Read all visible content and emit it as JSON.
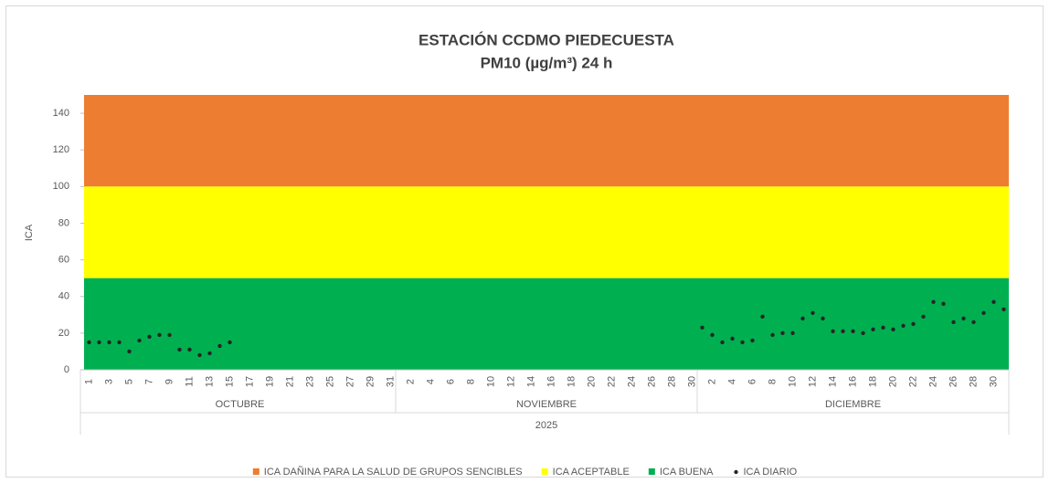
{
  "chart_data": {
    "type": "scatter",
    "title": "ESTACIÓN CCDMO PIEDECUESTA",
    "subtitle": "PM10 (µg/m³) 24 h",
    "y_label": "ICA",
    "ylim": [
      0,
      150
    ],
    "yticks": [
      0,
      20,
      40,
      60,
      80,
      100,
      120,
      140
    ],
    "categories": [
      "1",
      null,
      "3",
      null,
      "5",
      null,
      "7",
      null,
      "9",
      null,
      "11",
      null,
      "13",
      null,
      "15",
      null,
      "17",
      null,
      "19",
      null,
      "21",
      null,
      "23",
      null,
      "25",
      null,
      "27",
      null,
      "29",
      null,
      "31",
      null,
      "2",
      null,
      "4",
      null,
      "6",
      null,
      "8",
      null,
      "10",
      null,
      "12",
      null,
      "14",
      null,
      "16",
      null,
      "18",
      null,
      "20",
      null,
      "22",
      null,
      "24",
      null,
      "26",
      null,
      "28",
      null,
      "30",
      null,
      "2",
      null,
      "4",
      null,
      "6",
      null,
      "8",
      null,
      "10",
      null,
      "12",
      null,
      "14",
      null,
      "16",
      null,
      "18",
      null,
      "20",
      null,
      "22",
      null,
      "24",
      null,
      "26",
      null,
      "28",
      null,
      "30",
      null
    ],
    "groups": [
      {
        "name": "OCTUBRE",
        "span": 31
      },
      {
        "name": "NOVIEMBRE",
        "span": 30
      },
      {
        "name": "DICIEMBRE",
        "span": 31
      }
    ],
    "year": "2025",
    "bands": [
      {
        "name": "ICA DAÑINA PARA LA SALUD DE GRUPOS SENCIBLES",
        "color": "#ed7d31",
        "range": [
          100,
          150
        ]
      },
      {
        "name": "ICA ACEPTABLE",
        "color": "#ffff00",
        "range": [
          50,
          100
        ]
      },
      {
        "name": "ICA BUENA",
        "color": "#00b050",
        "range": [
          0,
          50
        ]
      }
    ],
    "series": [
      {
        "name": "ICA DIARIO",
        "color": "#262626",
        "values": [
          15,
          15,
          15,
          15,
          10,
          16,
          18,
          19,
          19,
          11,
          11,
          8,
          9,
          13,
          15,
          null,
          null,
          null,
          null,
          null,
          null,
          null,
          null,
          null,
          null,
          null,
          null,
          null,
          null,
          null,
          null,
          null,
          null,
          null,
          null,
          null,
          null,
          null,
          null,
          null,
          null,
          null,
          null,
          null,
          null,
          null,
          null,
          null,
          null,
          null,
          null,
          null,
          null,
          null,
          null,
          null,
          null,
          null,
          null,
          null,
          null,
          23,
          19,
          15,
          17,
          15,
          16,
          29,
          19,
          20,
          20,
          28,
          31,
          28,
          21,
          21,
          21,
          20,
          22,
          23,
          22,
          24,
          25,
          29,
          37,
          36,
          26,
          28,
          26,
          31,
          37,
          33
        ]
      }
    ]
  }
}
